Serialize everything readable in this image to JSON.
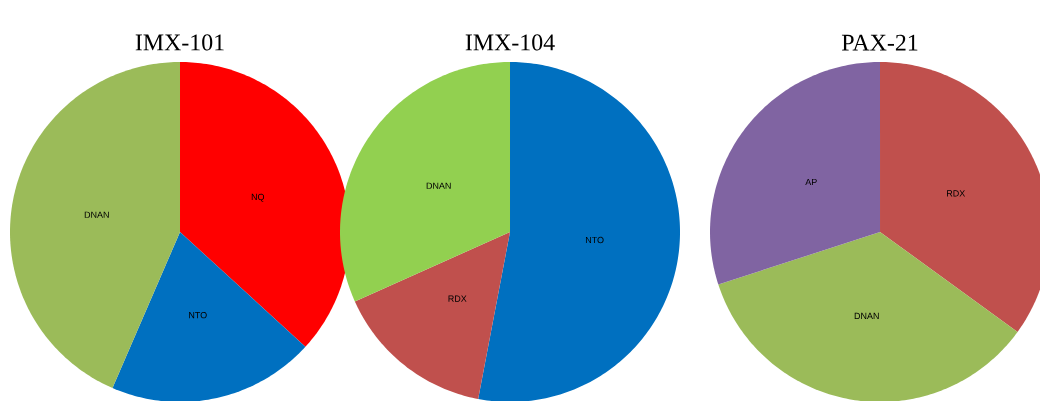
{
  "chart_data": [
    {
      "type": "pie",
      "title": "IMX-101",
      "categories": [
        "NQ",
        "NTO",
        "DNAN"
      ],
      "values": [
        36.8,
        19.7,
        43.5
      ],
      "colors": [
        "#ff0000",
        "#0070c0",
        "#9bbb59"
      ]
    },
    {
      "type": "pie",
      "title": "IMX-104",
      "categories": [
        "NTO",
        "RDX",
        "DNAN"
      ],
      "values": [
        53,
        15.3,
        31.7
      ],
      "colors": [
        "#0070c0",
        "#c0504d",
        "#92d050"
      ]
    },
    {
      "type": "pie",
      "title": "PAX-21",
      "categories": [
        "RDX",
        "DNAN",
        "AP"
      ],
      "values": [
        35,
        35,
        30
      ],
      "colors": [
        "#c0504d",
        "#9bbb59",
        "#8064a2"
      ]
    }
  ]
}
